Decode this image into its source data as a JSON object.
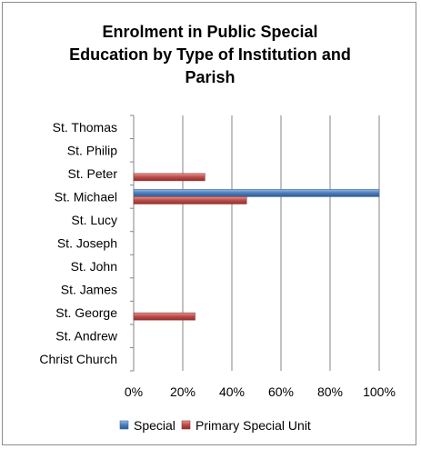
{
  "chart_data": {
    "type": "bar",
    "orientation": "horizontal",
    "title_lines": [
      "Enrolment in Public Special",
      "Education by Type of Institution and",
      "Parish"
    ],
    "categories": [
      "St. Thomas",
      "St. Philip",
      "St. Peter",
      "St. Michael",
      "St. Lucy",
      "St. Joseph",
      "St. John",
      "St. James",
      "St. George",
      "St. Andrew",
      "Christ Church"
    ],
    "series": [
      {
        "name": "Special",
        "color": "#4f81bd",
        "values": [
          0,
          0,
          0,
          100,
          0,
          0,
          0,
          0,
          0,
          0,
          0
        ]
      },
      {
        "name": "Primary Special Unit",
        "color": "#c0504d",
        "values": [
          0,
          0,
          29,
          46,
          0,
          0,
          0,
          0,
          25,
          0,
          0
        ]
      }
    ],
    "xlim": [
      0,
      100
    ],
    "x_ticks": [
      "0%",
      "20%",
      "40%",
      "60%",
      "80%",
      "100%"
    ],
    "grid": true,
    "legend_position": "bottom"
  }
}
